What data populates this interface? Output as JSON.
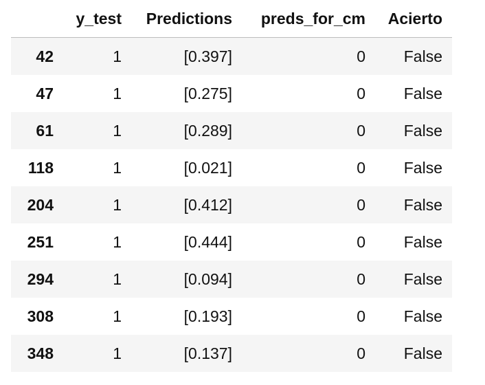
{
  "table": {
    "columns": [
      "",
      "y_test",
      "Predictions",
      "preds_for_cm",
      "Acierto"
    ],
    "rows": [
      {
        "index": "42",
        "y_test": "1",
        "predictions": "[0.397]",
        "preds_for_cm": "0",
        "acierto": "False"
      },
      {
        "index": "47",
        "y_test": "1",
        "predictions": "[0.275]",
        "preds_for_cm": "0",
        "acierto": "False"
      },
      {
        "index": "61",
        "y_test": "1",
        "predictions": "[0.289]",
        "preds_for_cm": "0",
        "acierto": "False"
      },
      {
        "index": "118",
        "y_test": "1",
        "predictions": "[0.021]",
        "preds_for_cm": "0",
        "acierto": "False"
      },
      {
        "index": "204",
        "y_test": "1",
        "predictions": "[0.412]",
        "preds_for_cm": "0",
        "acierto": "False"
      },
      {
        "index": "251",
        "y_test": "1",
        "predictions": "[0.444]",
        "preds_for_cm": "0",
        "acierto": "False"
      },
      {
        "index": "294",
        "y_test": "1",
        "predictions": "[0.094]",
        "preds_for_cm": "0",
        "acierto": "False"
      },
      {
        "index": "308",
        "y_test": "1",
        "predictions": "[0.193]",
        "preds_for_cm": "0",
        "acierto": "False"
      },
      {
        "index": "348",
        "y_test": "1",
        "predictions": "[0.137]",
        "preds_for_cm": "0",
        "acierto": "False"
      }
    ]
  }
}
